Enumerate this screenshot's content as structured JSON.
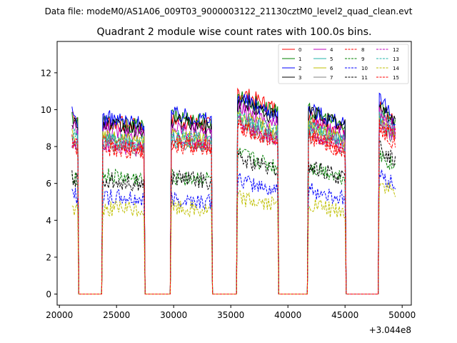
{
  "suptitle": "Data file: modeM0/AS1A06_009T03_9000003122_21130cztM0_level2_quad_clean.evt",
  "chart_data": {
    "type": "line",
    "title": "Quadrant 2 module wise count rates with 100.0s bins.",
    "xlabel": "",
    "ylabel": "",
    "x_offset_label": "+3.044e8",
    "xlim": [
      19800,
      50800
    ],
    "ylim": [
      -0.6,
      13.7
    ],
    "x_ticks": [
      20000,
      25000,
      30000,
      35000,
      40000,
      45000,
      50000
    ],
    "x_tick_labels": [
      "20000",
      "25000",
      "30000",
      "35000",
      "40000",
      "45000",
      "50000"
    ],
    "y_ticks": [
      0,
      2,
      4,
      6,
      8,
      10,
      12
    ],
    "y_tick_labels": [
      "0",
      "2",
      "4",
      "6",
      "8",
      "10",
      "12"
    ],
    "legend_position": "upper right",
    "good_time_intervals": [
      [
        21100,
        21600
      ],
      [
        23800,
        27400
      ],
      [
        29800,
        33300
      ],
      [
        35600,
        39100
      ],
      [
        41800,
        45000
      ],
      [
        48000,
        49400
      ]
    ],
    "series": [
      {
        "name": "0",
        "color": "#ff0000",
        "dash": "solid",
        "levels": [
          9.7,
          9.2,
          9.3,
          10.5,
          9.2,
          9.7
        ]
      },
      {
        "name": "1",
        "color": "#008000",
        "dash": "solid",
        "levels": [
          9.5,
          9.2,
          9.5,
          10.3,
          9.5,
          9.8
        ]
      },
      {
        "name": "2",
        "color": "#0000ff",
        "dash": "solid",
        "levels": [
          9.6,
          9.4,
          9.6,
          10.2,
          9.6,
          10.0
        ]
      },
      {
        "name": "3",
        "color": "#000000",
        "dash": "solid",
        "levels": [
          9.3,
          9.0,
          9.2,
          10.0,
          9.5,
          9.8
        ]
      },
      {
        "name": "4",
        "color": "#bf00bf",
        "dash": "solid",
        "levels": [
          8.9,
          8.8,
          8.9,
          9.6,
          9.0,
          9.4
        ]
      },
      {
        "name": "5",
        "color": "#20b2aa",
        "dash": "solid",
        "levels": [
          8.4,
          8.2,
          8.3,
          9.0,
          8.6,
          9.0
        ]
      },
      {
        "name": "6",
        "color": "#bfbf00",
        "dash": "solid",
        "levels": [
          8.5,
          8.3,
          8.4,
          9.2,
          8.7,
          9.1
        ]
      },
      {
        "name": "7",
        "color": "#808080",
        "dash": "solid",
        "levels": [
          8.2,
          8.0,
          8.1,
          8.8,
          8.3,
          8.8
        ]
      },
      {
        "name": "8",
        "color": "#ff0000",
        "dash": "dashed",
        "levels": [
          8.0,
          7.8,
          8.0,
          8.6,
          8.1,
          8.6
        ]
      },
      {
        "name": "9",
        "color": "#008000",
        "dash": "dashed",
        "levels": [
          6.4,
          6.3,
          6.3,
          7.2,
          6.6,
          7.2
        ]
      },
      {
        "name": "10",
        "color": "#0000ff",
        "dash": "dashed",
        "levels": [
          5.4,
          5.2,
          5.1,
          5.9,
          5.4,
          6.2
        ]
      },
      {
        "name": "11",
        "color": "#000000",
        "dash": "dashed",
        "levels": [
          6.2,
          6.1,
          6.2,
          7.0,
          6.6,
          7.6
        ]
      },
      {
        "name": "12",
        "color": "#bf00bf",
        "dash": "dashed",
        "levels": [
          8.1,
          8.0,
          8.3,
          8.9,
          8.4,
          9.0
        ]
      },
      {
        "name": "13",
        "color": "#20b2aa",
        "dash": "dashed",
        "levels": [
          8.6,
          8.3,
          8.5,
          9.2,
          8.6,
          9.2
        ]
      },
      {
        "name": "14",
        "color": "#bfbf00",
        "dash": "dashed",
        "levels": [
          4.6,
          4.6,
          4.6,
          5.0,
          4.6,
          5.7
        ]
      },
      {
        "name": "15",
        "color": "#ff0000",
        "dash": "dashed",
        "levels": [
          8.2,
          8.0,
          8.1,
          8.7,
          8.2,
          8.9
        ]
      }
    ]
  }
}
